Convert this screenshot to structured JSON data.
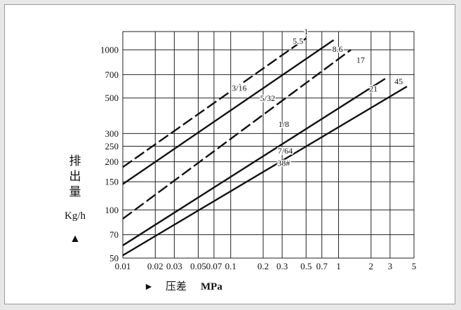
{
  "chart_data": {
    "type": "line",
    "xscale": "log",
    "yscale": "log",
    "xlim": [
      0.01,
      5
    ],
    "ylim": [
      50,
      1300
    ],
    "grid": true,
    "x_ticks": [
      0.01,
      0.02,
      0.03,
      0.05,
      0.07,
      0.1,
      0.2,
      0.3,
      0.5,
      0.7,
      1,
      2,
      3,
      5
    ],
    "x_tick_labels": [
      "0.01",
      "0.02",
      "0.03",
      "0.05",
      "0.07",
      "0.1",
      "0.2",
      "0.3",
      "0.5",
      "0.7",
      "1",
      "2",
      "3",
      "5"
    ],
    "y_ticks": [
      50,
      70,
      100,
      150,
      200,
      250,
      300,
      500,
      700,
      1000
    ],
    "y_tick_labels": [
      "50",
      "70",
      "100",
      "150",
      "200",
      "250",
      "300",
      "500",
      "700",
      "1000"
    ],
    "ylabel": {
      "chars": [
        "排",
        "出",
        "量"
      ],
      "unit": "Kg/h",
      "arrow": "▲"
    },
    "xlabel": {
      "arrow": "►",
      "text": "压差",
      "unit": "MPa"
    },
    "series": [
      {
        "name": "1",
        "dashed": true,
        "points": [
          [
            0.01,
            185
          ],
          [
            0.5,
            1180
          ]
        ]
      },
      {
        "name": "5.5",
        "dashed": false,
        "points": [
          [
            0.01,
            145
          ],
          [
            0.9,
            1150
          ]
        ]
      },
      {
        "name": "3/16",
        "dashed": false,
        "points": [
          [
            0.01,
            145
          ],
          [
            0.9,
            1150
          ]
        ]
      },
      {
        "name": "8.6",
        "dashed": false,
        "points": [
          [
            0.01,
            145
          ],
          [
            0.9,
            1150
          ]
        ]
      },
      {
        "name": "5/32",
        "dashed": true,
        "points": [
          [
            0.01,
            88
          ],
          [
            1.3,
            1000
          ]
        ]
      },
      {
        "name": "17",
        "dashed": true,
        "points": [
          [
            0.01,
            88
          ],
          [
            1.3,
            1000
          ]
        ]
      },
      {
        "name": "1/8",
        "dashed": true,
        "points": [
          [
            0.01,
            88
          ],
          [
            1.3,
            1000
          ]
        ]
      },
      {
        "name": "21",
        "dashed": false,
        "points": [
          [
            0.01,
            60
          ],
          [
            2.7,
            660
          ]
        ]
      },
      {
        "name": "7/64",
        "dashed": false,
        "points": [
          [
            0.01,
            60
          ],
          [
            2.7,
            660
          ]
        ]
      },
      {
        "name": "45",
        "dashed": false,
        "points": [
          [
            0.01,
            52
          ],
          [
            4.3,
            590
          ]
        ]
      },
      {
        "name": "38#",
        "dashed": false,
        "points": [
          [
            0.01,
            52
          ],
          [
            4.3,
            590
          ]
        ]
      }
    ],
    "lines": [
      {
        "dashed": true,
        "points": [
          [
            0.01,
            185
          ],
          [
            0.5,
            1180
          ]
        ]
      },
      {
        "dashed": false,
        "points": [
          [
            0.01,
            145
          ],
          [
            0.9,
            1150
          ]
        ]
      },
      {
        "dashed": true,
        "points": [
          [
            0.01,
            88
          ],
          [
            1.3,
            1000
          ]
        ]
      },
      {
        "dashed": false,
        "points": [
          [
            0.01,
            60
          ],
          [
            2.7,
            660
          ]
        ]
      },
      {
        "dashed": false,
        "points": [
          [
            0.01,
            52
          ],
          [
            4.3,
            590
          ]
        ]
      }
    ],
    "labels": [
      {
        "text": "1",
        "x": 0.5,
        "y": 1250
      },
      {
        "text": "5.5",
        "x": 0.42,
        "y": 1090
      },
      {
        "text": "8.6",
        "x": 0.98,
        "y": 970
      },
      {
        "text": "3/16",
        "x": 0.12,
        "y": 555
      },
      {
        "text": "5/32",
        "x": 0.22,
        "y": 480
      },
      {
        "text": "17",
        "x": 1.6,
        "y": 830
      },
      {
        "text": "1/8",
        "x": 0.31,
        "y": 330
      },
      {
        "text": "21",
        "x": 2.1,
        "y": 550
      },
      {
        "text": "45",
        "x": 3.6,
        "y": 610
      },
      {
        "text": "7/64",
        "x": 0.32,
        "y": 225
      },
      {
        "text": "38#",
        "x": 0.31,
        "y": 188
      }
    ]
  }
}
